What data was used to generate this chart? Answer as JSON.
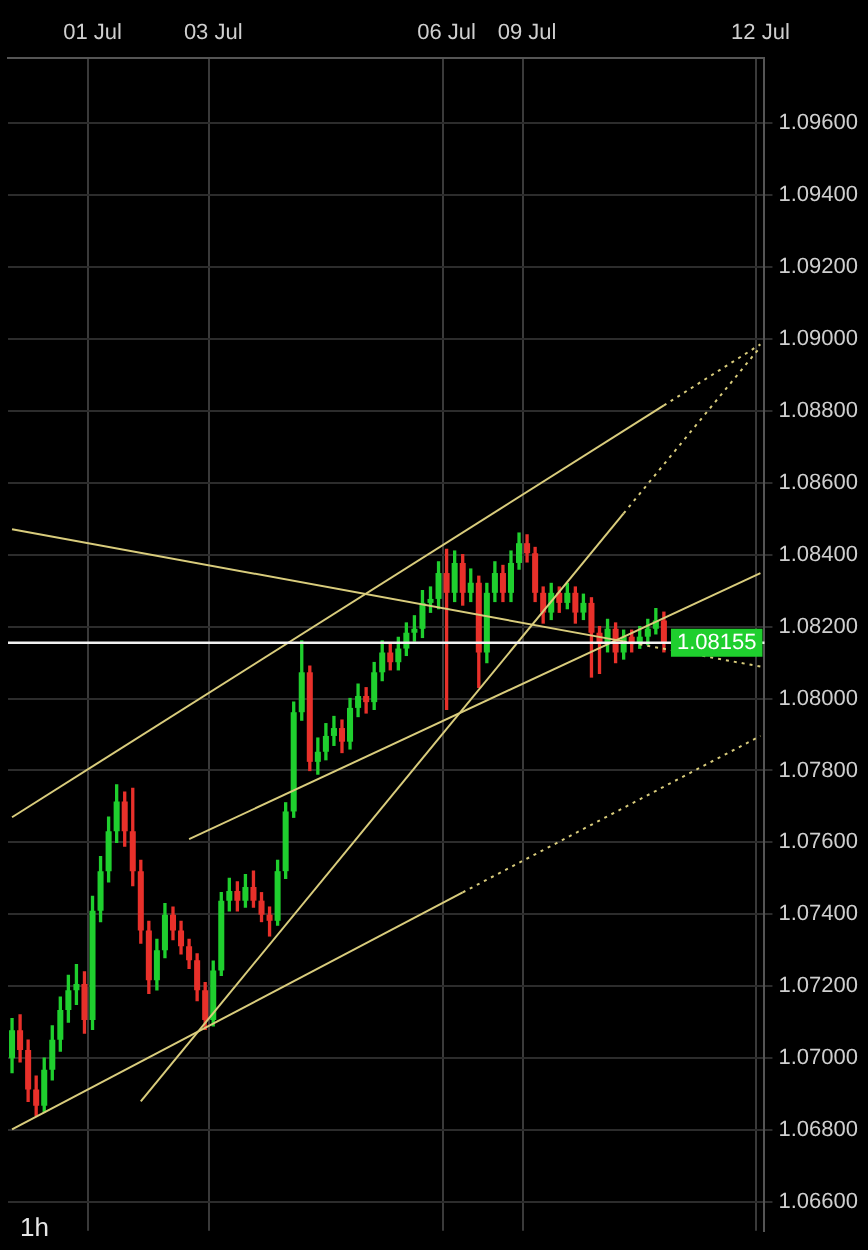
{
  "chart_data": {
    "type": "candlestick",
    "categories": [
      null,
      null,
      null,
      null,
      null,
      null,
      null,
      null,
      null,
      null,
      "01 Jul",
      null,
      null,
      null,
      null,
      null,
      null,
      null,
      null,
      null,
      null,
      null,
      null,
      null,
      null,
      "03 Jul",
      null,
      null,
      null,
      null,
      null,
      null,
      null,
      null,
      null,
      null,
      null,
      null,
      null,
      null,
      null,
      null,
      null,
      null,
      null,
      null,
      null,
      null,
      null,
      null,
      null,
      null,
      null,
      null,
      "06 Jul",
      null,
      null,
      null,
      null,
      null,
      null,
      null,
      null,
      null,
      "09 Jul",
      null,
      null,
      null,
      null,
      null,
      null,
      null,
      null,
      null,
      null,
      null,
      null,
      null,
      null,
      null,
      null,
      null,
      null,
      null,
      null,
      null,
      null,
      null,
      null,
      null,
      null,
      null,
      null,
      "12 Jul"
    ],
    "series": [
      {
        "ohlc": [
          [
            1.07,
            1.0711,
            1.0696,
            1.07078
          ],
          [
            1.07078,
            1.0712,
            1.0699,
            1.07023
          ],
          [
            1.07023,
            1.0705,
            1.0688,
            1.06913
          ],
          [
            1.06913,
            1.0695,
            1.0684,
            1.06868
          ],
          [
            1.06868,
            1.07,
            1.0685,
            1.06968
          ],
          [
            1.06968,
            1.0709,
            1.0694,
            1.07051
          ],
          [
            1.07051,
            1.0717,
            1.0702,
            1.07134
          ],
          [
            1.07134,
            1.0723,
            1.071,
            1.07189
          ],
          [
            1.07189,
            1.0726,
            1.0715,
            1.07206
          ],
          [
            1.07206,
            1.0724,
            1.0707,
            1.07106
          ],
          [
            1.07106,
            1.0745,
            1.0708,
            1.0741
          ],
          [
            1.0741,
            1.0756,
            1.0738,
            1.0752
          ],
          [
            1.0752,
            1.0767,
            1.0749,
            1.07631
          ],
          [
            1.07631,
            1.0776,
            1.076,
            1.07714
          ],
          [
            1.07714,
            1.0774,
            1.0759,
            1.07631
          ],
          [
            1.07631,
            1.0775,
            1.0748,
            1.0752
          ],
          [
            1.0752,
            1.0755,
            1.0732,
            1.07355
          ],
          [
            1.07355,
            1.0738,
            1.0718,
            1.07217
          ],
          [
            1.07217,
            1.0733,
            1.0719,
            1.073
          ],
          [
            1.073,
            1.0743,
            1.0728,
            1.07399
          ],
          [
            1.07399,
            1.0742,
            1.0733,
            1.07355
          ],
          [
            1.07355,
            1.0738,
            1.0729,
            1.07311
          ],
          [
            1.07311,
            1.0733,
            1.0725,
            1.07272
          ],
          [
            1.07272,
            1.0729,
            1.0716,
            1.07189
          ],
          [
            1.07189,
            1.0721,
            1.0708,
            1.07106
          ],
          [
            1.07106,
            1.0727,
            1.0709,
            1.07244
          ],
          [
            1.07244,
            1.0746,
            1.0723,
            1.07438
          ],
          [
            1.07438,
            1.075,
            1.0741,
            1.07465
          ],
          [
            1.07465,
            1.0749,
            1.0741,
            1.07438
          ],
          [
            1.07438,
            1.0751,
            1.0742,
            1.07476
          ],
          [
            1.07476,
            1.0752,
            1.0742,
            1.07438
          ],
          [
            1.07438,
            1.0746,
            1.0738,
            1.07399
          ],
          [
            1.07399,
            1.0742,
            1.0734,
            1.07382
          ],
          [
            1.07382,
            1.0755,
            1.0737,
            1.0752
          ],
          [
            1.0752,
            1.0771,
            1.075,
            1.07686
          ],
          [
            1.07686,
            1.0799,
            1.0767,
            1.07962
          ],
          [
            1.07962,
            1.0816,
            1.0794,
            1.08073
          ],
          [
            1.08073,
            1.0809,
            1.078,
            1.07824
          ],
          [
            1.07824,
            1.0789,
            1.0779,
            1.07852
          ],
          [
            1.07852,
            1.0793,
            1.0783,
            1.07896
          ],
          [
            1.07896,
            1.0795,
            1.0787,
            1.07918
          ],
          [
            1.07918,
            1.0794,
            1.0785,
            1.0788
          ],
          [
            1.0788,
            1.08,
            1.0786,
            1.07974
          ],
          [
            1.07974,
            1.0804,
            1.0795,
            1.08007
          ],
          [
            1.08007,
            1.0803,
            1.0796,
            1.0799
          ],
          [
            1.0799,
            1.081,
            1.0797,
            1.08073
          ],
          [
            1.08073,
            1.0816,
            1.0805,
            1.08128
          ],
          [
            1.08128,
            1.0815,
            1.0808,
            1.08101
          ],
          [
            1.08101,
            1.0817,
            1.0808,
            1.08139
          ],
          [
            1.08139,
            1.0821,
            1.0812,
            1.08183
          ],
          [
            1.08183,
            1.0823,
            1.0816,
            1.08194
          ],
          [
            1.08194,
            1.083,
            1.0817,
            1.08266
          ],
          [
            1.08266,
            1.0831,
            1.0824,
            1.08277
          ],
          [
            1.08277,
            1.0838,
            1.0825,
            1.08349
          ],
          [
            1.08349,
            1.08415,
            1.0797,
            1.08294
          ],
          [
            1.08294,
            1.0841,
            1.0827,
            1.08377
          ],
          [
            1.08377,
            1.084,
            1.0826,
            1.08294
          ],
          [
            1.08294,
            1.0836,
            1.0827,
            1.08322
          ],
          [
            1.08322,
            1.0834,
            1.08031,
            1.08128
          ],
          [
            1.08128,
            1.0832,
            1.081,
            1.08294
          ],
          [
            1.08294,
            1.0838,
            1.0827,
            1.08349
          ],
          [
            1.08349,
            1.0837,
            1.0827,
            1.08294
          ],
          [
            1.08294,
            1.0841,
            1.0827,
            1.08377
          ],
          [
            1.08377,
            1.0846,
            1.0836,
            1.08432
          ],
          [
            1.08432,
            1.08455,
            1.0838,
            1.08404
          ],
          [
            1.08404,
            1.0842,
            1.0827,
            1.08294
          ],
          [
            1.08294,
            1.0831,
            1.0821,
            1.08239
          ],
          [
            1.08239,
            1.0832,
            1.0822,
            1.08294
          ],
          [
            1.08294,
            1.0831,
            1.0824,
            1.08266
          ],
          [
            1.08266,
            1.0832,
            1.0825,
            1.08294
          ],
          [
            1.08294,
            1.0831,
            1.0821,
            1.08239
          ],
          [
            1.08239,
            1.0829,
            1.0822,
            1.08266
          ],
          [
            1.08266,
            1.0828,
            1.0806,
            1.08183
          ],
          [
            1.08183,
            1.082,
            1.0807,
            1.08156
          ],
          [
            1.08156,
            1.0822,
            1.0813,
            1.08194
          ],
          [
            1.08194,
            1.0821,
            1.081,
            1.08128
          ],
          [
            1.08128,
            1.0819,
            1.0811,
            1.08172
          ],
          [
            1.08172,
            1.0819,
            1.0813,
            1.08156
          ],
          [
            1.08156,
            1.082,
            1.0814,
            1.08172
          ],
          [
            1.08172,
            1.0822,
            1.0815,
            1.08194
          ],
          [
            1.08194,
            1.0825,
            1.0818,
            1.08217
          ],
          [
            1.08217,
            1.0824,
            1.0813,
            1.08155
          ],
          null,
          null,
          null,
          null,
          null,
          null,
          null,
          null,
          null,
          null,
          null,
          null
        ],
        "colors": [
          "#1fcf2e",
          "#e8302a",
          "#e8302a",
          "#e8302a",
          "#1fcf2e",
          "#1fcf2e",
          "#1fcf2e",
          "#1fcf2e",
          "#1fcf2e",
          "#e8302a",
          "#1fcf2e",
          "#1fcf2e",
          "#1fcf2e",
          "#1fcf2e",
          "#e8302a",
          "#e8302a",
          "#e8302a",
          "#e8302a",
          "#1fcf2e",
          "#1fcf2e",
          "#e8302a",
          "#e8302a",
          "#e8302a",
          "#e8302a",
          "#e8302a",
          "#1fcf2e",
          "#1fcf2e",
          "#1fcf2e",
          "#e8302a",
          "#1fcf2e",
          "#e8302a",
          "#e8302a",
          "#e8302a",
          "#1fcf2e",
          "#1fcf2e",
          "#1fcf2e",
          "#1fcf2e",
          "#e8302a",
          "#1fcf2e",
          "#1fcf2e",
          "#1fcf2e",
          "#e8302a",
          "#1fcf2e",
          "#1fcf2e",
          "#e8302a",
          "#1fcf2e",
          "#1fcf2e",
          "#e8302a",
          "#1fcf2e",
          "#1fcf2e",
          "#1fcf2e",
          "#1fcf2e",
          "#1fcf2e",
          "#1fcf2e",
          "#e8302a",
          "#1fcf2e",
          "#e8302a",
          "#1fcf2e",
          "#e8302a",
          "#1fcf2e",
          "#1fcf2e",
          "#e8302a",
          "#1fcf2e",
          "#1fcf2e",
          "#e8302a",
          "#e8302a",
          "#e8302a",
          "#1fcf2e",
          "#e8302a",
          "#1fcf2e",
          "#e8302a",
          "#1fcf2e",
          "#e8302a",
          "#e8302a",
          "#1fcf2e",
          "#e8302a",
          "#1fcf2e",
          "#e8302a",
          "#1fcf2e",
          "#1fcf2e",
          "#1fcf2e",
          "#e8302a",
          null,
          null,
          null,
          null,
          null,
          null,
          null,
          null,
          null,
          null,
          null,
          null
        ]
      },
      {
        "type": "line",
        "color": "#d9cc7c",
        "line_style": "solid",
        "values": [
          1.0767,
          null,
          null,
          null,
          null,
          null,
          null,
          null,
          null,
          null,
          null,
          null,
          null,
          null,
          null,
          null,
          null,
          null,
          null,
          null,
          null,
          null,
          null,
          null,
          null,
          null,
          null,
          null,
          null,
          null,
          null,
          null,
          null,
          null,
          null,
          null,
          null,
          null,
          null,
          null,
          null,
          null,
          null,
          null,
          null,
          null,
          null,
          null,
          null,
          null,
          null,
          null,
          null,
          null,
          null,
          null,
          null,
          null,
          null,
          null,
          null,
          null,
          null,
          null,
          null,
          null,
          null,
          null,
          null,
          null,
          null,
          null,
          null,
          null,
          null,
          null,
          null,
          null,
          null,
          null,
          null,
          1.08815,
          null,
          null,
          null,
          null,
          null,
          null,
          null,
          null,
          null,
          null,
          null,
          null
        ]
      },
      {
        "type": "line",
        "color": "#d9cc7c",
        "line_style": "dotted",
        "values": [
          null,
          null,
          null,
          null,
          null,
          null,
          null,
          null,
          null,
          null,
          null,
          null,
          null,
          null,
          null,
          null,
          null,
          null,
          null,
          null,
          null,
          null,
          null,
          null,
          null,
          null,
          null,
          null,
          null,
          null,
          null,
          null,
          null,
          null,
          null,
          null,
          null,
          null,
          null,
          null,
          null,
          null,
          null,
          null,
          null,
          null,
          null,
          null,
          null,
          null,
          null,
          null,
          null,
          null,
          null,
          null,
          null,
          null,
          null,
          null,
          null,
          null,
          null,
          null,
          null,
          null,
          null,
          null,
          null,
          null,
          null,
          null,
          null,
          null,
          null,
          null,
          null,
          null,
          null,
          null,
          null,
          1.08815,
          null,
          null,
          null,
          null,
          null,
          null,
          null,
          null,
          null,
          null,
          null,
          1.08985
        ]
      },
      {
        "type": "line",
        "color": "#d9cc7c",
        "line_style": "solid",
        "values": [
          1.06802,
          null,
          null,
          null,
          null,
          null,
          null,
          null,
          null,
          null,
          null,
          null,
          null,
          null,
          null,
          null,
          null,
          null,
          null,
          null,
          null,
          null,
          null,
          null,
          null,
          null,
          null,
          null,
          null,
          null,
          null,
          null,
          null,
          null,
          null,
          null,
          null,
          null,
          null,
          null,
          null,
          null,
          null,
          null,
          null,
          null,
          null,
          null,
          null,
          null,
          null,
          null,
          null,
          null,
          null,
          null,
          1.07461,
          null,
          null,
          null,
          null,
          null,
          null,
          null,
          null,
          null,
          null,
          null,
          null,
          null,
          null,
          null,
          null,
          null,
          null,
          null,
          null,
          null,
          null,
          null,
          null,
          null,
          null,
          null,
          null,
          null,
          null,
          null,
          null,
          null,
          null,
          null,
          null,
          null
        ]
      },
      {
        "type": "line",
        "color": "#d9cc7c",
        "line_style": "dotted",
        "values": [
          null,
          null,
          null,
          null,
          null,
          null,
          null,
          null,
          null,
          null,
          null,
          null,
          null,
          null,
          null,
          null,
          null,
          null,
          null,
          null,
          null,
          null,
          null,
          null,
          null,
          null,
          null,
          null,
          null,
          null,
          null,
          null,
          null,
          null,
          null,
          null,
          null,
          null,
          null,
          null,
          null,
          null,
          null,
          null,
          null,
          null,
          null,
          null,
          null,
          null,
          null,
          null,
          null,
          null,
          null,
          null,
          1.07461,
          null,
          null,
          null,
          null,
          null,
          null,
          null,
          null,
          null,
          null,
          null,
          null,
          null,
          null,
          null,
          null,
          null,
          null,
          null,
          null,
          null,
          null,
          null,
          null,
          null,
          null,
          null,
          null,
          null,
          null,
          null,
          null,
          null,
          null,
          null,
          null,
          1.07896
        ]
      },
      {
        "type": "line",
        "color": "#d9cc7c",
        "line_style": "solid",
        "values": [
          1.08471,
          null,
          null,
          null,
          null,
          null,
          null,
          null,
          null,
          null,
          null,
          null,
          null,
          null,
          null,
          null,
          null,
          null,
          null,
          null,
          null,
          null,
          null,
          null,
          null,
          null,
          null,
          null,
          null,
          null,
          null,
          null,
          null,
          null,
          null,
          null,
          null,
          null,
          null,
          null,
          null,
          null,
          null,
          null,
          null,
          null,
          null,
          null,
          null,
          null,
          null,
          null,
          null,
          null,
          null,
          null,
          null,
          null,
          null,
          null,
          null,
          null,
          null,
          null,
          null,
          null,
          null,
          null,
          null,
          null,
          null,
          null,
          null,
          null,
          null,
          null,
          1.08159,
          null,
          null,
          null,
          null,
          null,
          null,
          null,
          null,
          null,
          null,
          null,
          null,
          null,
          null,
          null,
          null,
          null
        ]
      },
      {
        "type": "line",
        "color": "#d9cc7c",
        "line_style": "dotted",
        "values": [
          null,
          null,
          null,
          null,
          null,
          null,
          null,
          null,
          null,
          null,
          null,
          null,
          null,
          null,
          null,
          null,
          null,
          null,
          null,
          null,
          null,
          null,
          null,
          null,
          null,
          null,
          null,
          null,
          null,
          null,
          null,
          null,
          null,
          null,
          null,
          null,
          null,
          null,
          null,
          null,
          null,
          null,
          null,
          null,
          null,
          null,
          null,
          null,
          null,
          null,
          null,
          null,
          null,
          null,
          null,
          null,
          null,
          null,
          null,
          null,
          null,
          null,
          null,
          null,
          null,
          null,
          null,
          null,
          null,
          null,
          null,
          null,
          null,
          null,
          null,
          null,
          1.08159,
          null,
          null,
          null,
          null,
          null,
          null,
          null,
          null,
          null,
          null,
          null,
          null,
          null,
          null,
          null,
          null,
          1.08089
        ]
      },
      {
        "type": "line",
        "color": "#d9cc7c",
        "line_style": "solid",
        "values": [
          null,
          null,
          null,
          null,
          null,
          null,
          null,
          null,
          null,
          null,
          null,
          null,
          null,
          null,
          null,
          null,
          null,
          null,
          null,
          null,
          null,
          null,
          1.07609,
          null,
          null,
          null,
          null,
          null,
          null,
          null,
          null,
          null,
          null,
          null,
          null,
          null,
          null,
          null,
          null,
          null,
          null,
          null,
          null,
          null,
          null,
          null,
          null,
          null,
          null,
          null,
          null,
          null,
          null,
          null,
          null,
          null,
          null,
          null,
          null,
          null,
          null,
          null,
          null,
          null,
          null,
          null,
          null,
          null,
          null,
          null,
          null,
          null,
          null,
          null,
          null,
          null,
          null,
          null,
          null,
          null,
          null,
          null,
          null,
          null,
          null,
          null,
          null,
          null,
          null,
          null,
          null,
          null,
          null,
          1.08349
        ]
      },
      {
        "type": "line",
        "color": "#d9cc7c",
        "line_style": "solid",
        "values": [
          null,
          null,
          null,
          null,
          null,
          null,
          null,
          null,
          null,
          null,
          null,
          null,
          null,
          null,
          null,
          null,
          1.0688,
          null,
          null,
          null,
          null,
          null,
          null,
          null,
          null,
          null,
          null,
          null,
          null,
          null,
          null,
          null,
          null,
          null,
          null,
          null,
          null,
          null,
          null,
          null,
          null,
          null,
          null,
          null,
          null,
          null,
          null,
          null,
          null,
          null,
          null,
          null,
          null,
          null,
          null,
          null,
          null,
          null,
          null,
          null,
          null,
          null,
          null,
          null,
          null,
          null,
          null,
          null,
          null,
          null,
          null,
          null,
          null,
          null,
          null,
          null,
          1.08515,
          null,
          null,
          null,
          null,
          null,
          null,
          null,
          null,
          null,
          null,
          null,
          null,
          null,
          null,
          null,
          null,
          null
        ]
      },
      {
        "type": "line",
        "color": "#d9cc7c",
        "line_style": "dotted",
        "values": [
          null,
          null,
          null,
          null,
          null,
          null,
          null,
          null,
          null,
          null,
          null,
          null,
          null,
          null,
          null,
          null,
          null,
          null,
          null,
          null,
          null,
          null,
          null,
          null,
          null,
          null,
          null,
          null,
          null,
          null,
          null,
          null,
          null,
          null,
          null,
          null,
          null,
          null,
          null,
          null,
          null,
          null,
          null,
          null,
          null,
          null,
          null,
          null,
          null,
          null,
          null,
          null,
          null,
          null,
          null,
          null,
          null,
          null,
          null,
          null,
          null,
          null,
          null,
          null,
          null,
          null,
          null,
          null,
          null,
          null,
          null,
          null,
          null,
          null,
          null,
          null,
          1.08515,
          null,
          null,
          null,
          null,
          null,
          null,
          null,
          null,
          null,
          null,
          null,
          null,
          null,
          null,
          null,
          null,
          1.08978
        ]
      }
    ],
    "ylim": [
      1.0652,
      1.0978
    ],
    "yticks": [
      {
        "value": 1.066,
        "label": "1.06600"
      },
      {
        "value": 1.068,
        "label": "1.06800"
      },
      {
        "value": 1.07,
        "label": "1.07000"
      },
      {
        "value": 1.072,
        "label": "1.07200"
      },
      {
        "value": 1.074,
        "label": "1.07400"
      },
      {
        "value": 1.076,
        "label": "1.07600"
      },
      {
        "value": 1.078,
        "label": "1.07800"
      },
      {
        "value": 1.08,
        "label": "1.08000"
      },
      {
        "value": 1.082,
        "label": "1.08200"
      },
      {
        "value": 1.084,
        "label": "1.08400"
      },
      {
        "value": 1.086,
        "label": "1.08600"
      },
      {
        "value": 1.088,
        "label": "1.08800"
      },
      {
        "value": 1.09,
        "label": "1.09000"
      },
      {
        "value": 1.092,
        "label": "1.09200"
      },
      {
        "value": 1.094,
        "label": "1.09400"
      },
      {
        "value": 1.096,
        "label": "1.09600"
      }
    ],
    "ref_lines": [
      {
        "axis": "y",
        "value": 1.08155,
        "label": "1.08155",
        "color": "#f2f2f2"
      }
    ],
    "annotations": [
      "1h"
    ],
    "grid": true,
    "legend": false
  }
}
